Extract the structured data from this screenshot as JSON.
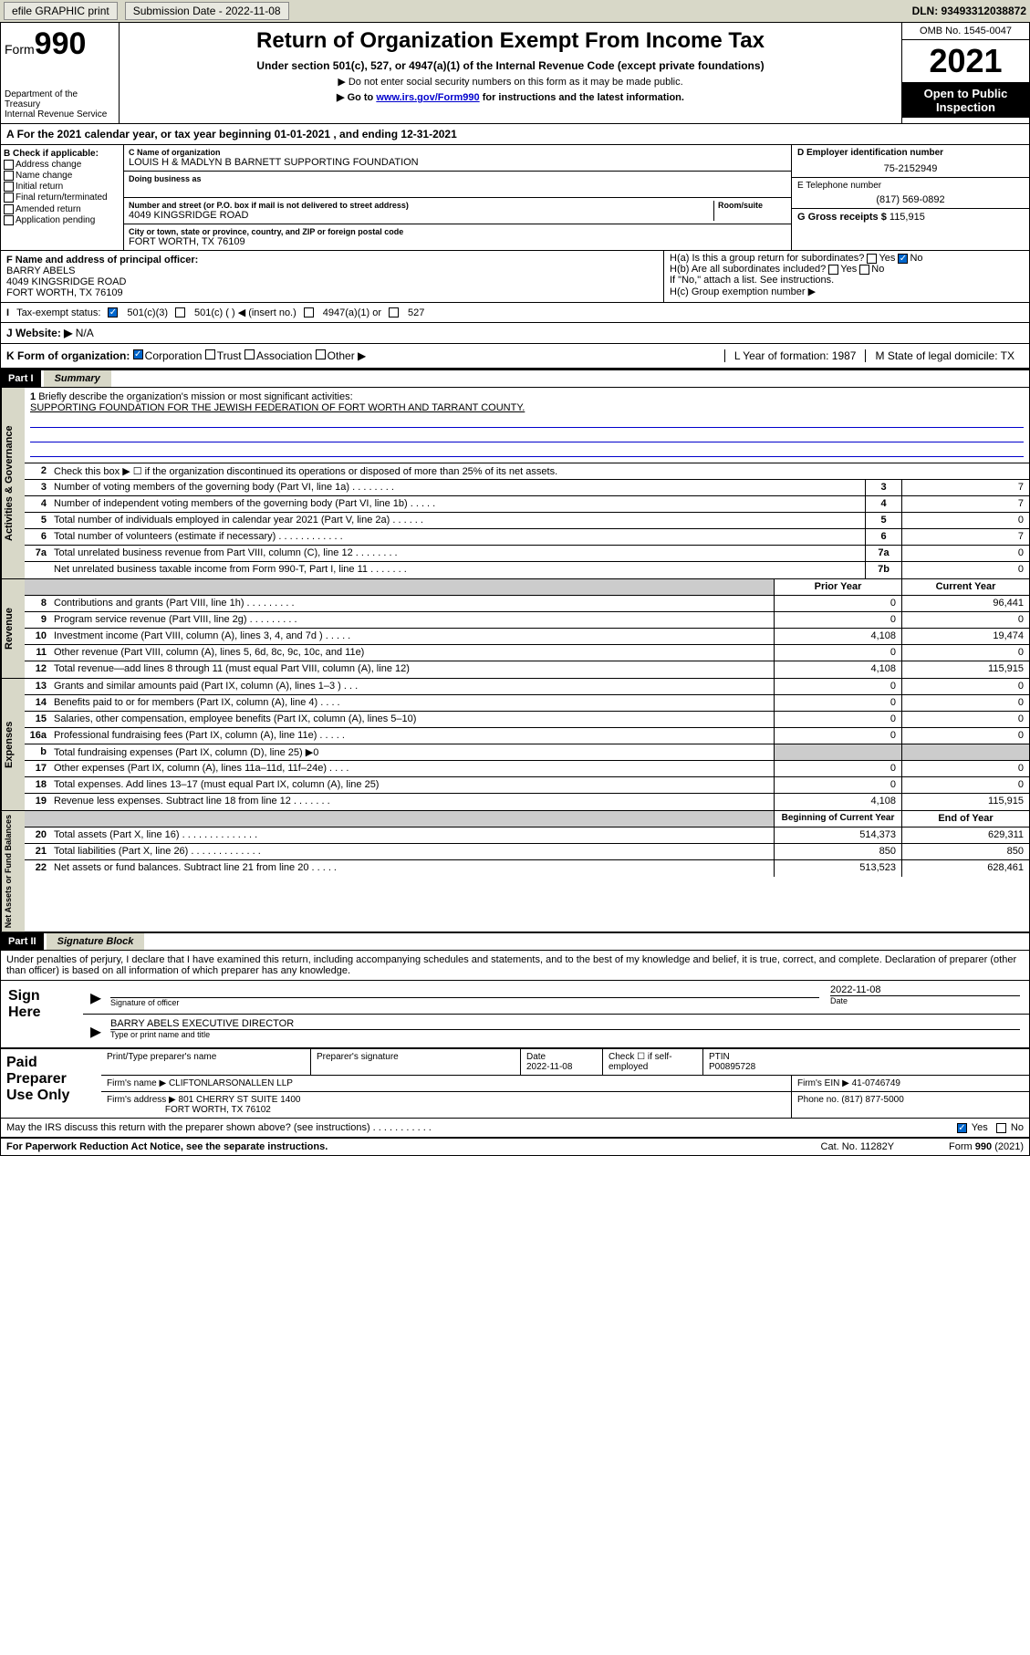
{
  "topbar": {
    "efile": "efile GRAPHIC print",
    "sub_lbl": "Submission Date - 2022-11-08",
    "dln": "DLN: 93493312038872"
  },
  "header": {
    "form": "Form",
    "num": "990",
    "dept": "Department of the Treasury",
    "irs": "Internal Revenue Service",
    "title": "Return of Organization Exempt From Income Tax",
    "sub": "Under section 501(c), 527, or 4947(a)(1) of the Internal Revenue Code (except private foundations)",
    "s1": "▶ Do not enter social security numbers on this form as it may be made public.",
    "s2a": "▶ Go to ",
    "s2link": "www.irs.gov/Form990",
    "s2b": " for instructions and the latest information.",
    "omb": "OMB No. 1545-0047",
    "year": "2021",
    "otp": "Open to Public Inspection"
  },
  "A": {
    "text": "For the 2021 calendar year, or tax year beginning 01-01-2021   , and ending 12-31-2021"
  },
  "B": {
    "lbl": "B Check if applicable:",
    "items": [
      "Address change",
      "Name change",
      "Initial return",
      "Final return/terminated",
      "Amended return",
      "Application pending"
    ]
  },
  "C": {
    "name_lbl": "C Name of organization",
    "name": "LOUIS H & MADLYN B BARNETT SUPPORTING FOUNDATION",
    "dba_lbl": "Doing business as",
    "addr_lbl": "Number and street (or P.O. box if mail is not delivered to street address)",
    "suite_lbl": "Room/suite",
    "addr": "4049 KINGSRIDGE ROAD",
    "city_lbl": "City or town, state or province, country, and ZIP or foreign postal code",
    "city": "FORT WORTH, TX  76109"
  },
  "D": {
    "lbl": "D Employer identification number",
    "val": "75-2152949"
  },
  "E": {
    "lbl": "E Telephone number",
    "val": "(817) 569-0892"
  },
  "G": {
    "lbl": "G Gross receipts $",
    "val": "115,915"
  },
  "F": {
    "lbl": "F Name and address of principal officer:",
    "name": "BARRY ABELS",
    "addr": "4049 KINGSRIDGE ROAD",
    "city": "FORT WORTH, TX  76109"
  },
  "H": {
    "a": "H(a)  Is this a group return for subordinates?",
    "b": "H(b)  Are all subordinates included?",
    "note": "If \"No,\" attach a list. See instructions.",
    "c": "H(c)  Group exemption number ▶",
    "yes": "Yes",
    "no": "No"
  },
  "I": {
    "lbl": "Tax-exempt status:",
    "o1": "501(c)(3)",
    "o2": "501(c) (  ) ◀ (insert no.)",
    "o3": "4947(a)(1) or",
    "o4": "527"
  },
  "J": {
    "lbl": "Website: ▶",
    "val": "N/A"
  },
  "K": {
    "lbl": "K Form of organization:",
    "o1": "Corporation",
    "o2": "Trust",
    "o3": "Association",
    "o4": "Other ▶",
    "L": "L Year of formation: 1987",
    "M": "M State of legal domicile: TX"
  },
  "partI": {
    "hdr": "Part I",
    "title": "Summary"
  },
  "line1": {
    "lbl": "Briefly describe the organization's mission or most significant activities:",
    "val": "SUPPORTING FOUNDATION FOR THE JEWISH FEDERATION OF FORT WORTH AND TARRANT COUNTY."
  },
  "line2": "Check this box ▶ ☐  if the organization discontinued its operations or disposed of more than 25% of its net assets.",
  "gov": {
    "tab": "Activities & Governance",
    "rows": [
      {
        "n": "3",
        "d": "Number of voting members of the governing body (Part VI, line 1a)  .   .   .   .   .   .   .   .",
        "b": "3",
        "v": "7"
      },
      {
        "n": "4",
        "d": "Number of independent voting members of the governing body (Part VI, line 1b)  .   .   .   .   .",
        "b": "4",
        "v": "7"
      },
      {
        "n": "5",
        "d": "Total number of individuals employed in calendar year 2021 (Part V, line 2a)  .   .   .   .   .   .",
        "b": "5",
        "v": "0"
      },
      {
        "n": "6",
        "d": "Total number of volunteers (estimate if necessary)  .   .   .   .   .   .   .   .   .   .   .   .",
        "b": "6",
        "v": "7"
      },
      {
        "n": "7a",
        "d": "Total unrelated business revenue from Part VIII, column (C), line 12  .   .   .   .   .   .   .   .",
        "b": "7a",
        "v": "0"
      },
      {
        "n": "",
        "d": "Net unrelated business taxable income from Form 990-T, Part I, line 11  .   .   .   .   .   .   .",
        "b": "7b",
        "v": "0"
      }
    ]
  },
  "rev": {
    "tab": "Revenue",
    "hdr_prior": "Prior Year",
    "hdr_curr": "Current Year",
    "rows": [
      {
        "n": "8",
        "d": "Contributions and grants (Part VIII, line 1h)  .   .   .   .   .   .   .   .   .",
        "p": "0",
        "c": "96,441"
      },
      {
        "n": "9",
        "d": "Program service revenue (Part VIII, line 2g)  .   .   .   .   .   .   .   .   .",
        "p": "0",
        "c": "0"
      },
      {
        "n": "10",
        "d": "Investment income (Part VIII, column (A), lines 3, 4, and 7d )  .   .   .   .   .",
        "p": "4,108",
        "c": "19,474"
      },
      {
        "n": "11",
        "d": "Other revenue (Part VIII, column (A), lines 5, 6d, 8c, 9c, 10c, and 11e)",
        "p": "0",
        "c": "0"
      },
      {
        "n": "12",
        "d": "Total revenue—add lines 8 through 11 (must equal Part VIII, column (A), line 12)",
        "p": "4,108",
        "c": "115,915"
      }
    ]
  },
  "exp": {
    "tab": "Expenses",
    "rows": [
      {
        "n": "13",
        "d": "Grants and similar amounts paid (Part IX, column (A), lines 1–3 )  .   .   .",
        "p": "0",
        "c": "0"
      },
      {
        "n": "14",
        "d": "Benefits paid to or for members (Part IX, column (A), line 4)  .   .   .   .",
        "p": "0",
        "c": "0"
      },
      {
        "n": "15",
        "d": "Salaries, other compensation, employee benefits (Part IX, column (A), lines 5–10)",
        "p": "0",
        "c": "0"
      },
      {
        "n": "16a",
        "d": "Professional fundraising fees (Part IX, column (A), line 11e)  .   .   .   .   .",
        "p": "0",
        "c": "0"
      },
      {
        "n": "b",
        "d": "Total fundraising expenses (Part IX, column (D), line 25) ▶0",
        "p": "",
        "c": "",
        "shade": true
      },
      {
        "n": "17",
        "d": "Other expenses (Part IX, column (A), lines 11a–11d, 11f–24e)  .   .   .   .",
        "p": "0",
        "c": "0"
      },
      {
        "n": "18",
        "d": "Total expenses. Add lines 13–17 (must equal Part IX, column (A), line 25)",
        "p": "0",
        "c": "0"
      },
      {
        "n": "19",
        "d": "Revenue less expenses. Subtract line 18 from line 12  .   .   .   .   .   .   .",
        "p": "4,108",
        "c": "115,915"
      }
    ]
  },
  "net": {
    "tab": "Net Assets or Fund Balances",
    "hdr_beg": "Beginning of Current Year",
    "hdr_end": "End of Year",
    "rows": [
      {
        "n": "20",
        "d": "Total assets (Part X, line 16)  .   .   .   .   .   .   .   .   .   .   .   .   .   .",
        "p": "514,373",
        "c": "629,311"
      },
      {
        "n": "21",
        "d": "Total liabilities (Part X, line 26)  .   .   .   .   .   .   .   .   .   .   .   .   .",
        "p": "850",
        "c": "850"
      },
      {
        "n": "22",
        "d": "Net assets or fund balances. Subtract line 21 from line 20  .   .   .   .   .",
        "p": "513,523",
        "c": "628,461"
      }
    ]
  },
  "partII": {
    "hdr": "Part II",
    "title": "Signature Block"
  },
  "penalties": "Under penalties of perjury, I declare that I have examined this return, including accompanying schedules and statements, and to the best of my knowledge and belief, it is true, correct, and complete. Declaration of preparer (other than officer) is based on all information of which preparer has any knowledge.",
  "sign": {
    "lbl": "Sign Here",
    "sig_lbl": "Signature of officer",
    "date_lbl": "Date",
    "date": "2022-11-08",
    "name": "BARRY ABELS EXECUTIVE DIRECTOR",
    "name_lbl": "Type or print name and title"
  },
  "paid": {
    "lbl": "Paid Preparer Use Only",
    "r1": {
      "c1": "Print/Type preparer's name",
      "c2": "Preparer's signature",
      "c3": "Date",
      "c3v": "2022-11-08",
      "c4": "Check ☐ if self-employed",
      "c5": "PTIN",
      "c5v": "P00895728"
    },
    "r2": {
      "c1": "Firm's name     ▶",
      "c1v": "CLIFTONLARSONALLEN LLP",
      "c2": "Firm's EIN ▶",
      "c2v": "41-0746749"
    },
    "r3": {
      "c1": "Firm's address ▶",
      "c1v": "801 CHERRY ST SUITE 1400",
      "c1v2": "FORT WORTH, TX  76102",
      "c2": "Phone no. (817) 877-5000"
    }
  },
  "discuss": "May the IRS discuss this return with the preparer shown above? (see instructions)  .   .   .   .   .   .   .   .   .   .   .",
  "footer": {
    "l": "For Paperwork Reduction Act Notice, see the separate instructions.",
    "m": "Cat. No. 11282Y",
    "r": "Form 990 (2021)"
  }
}
